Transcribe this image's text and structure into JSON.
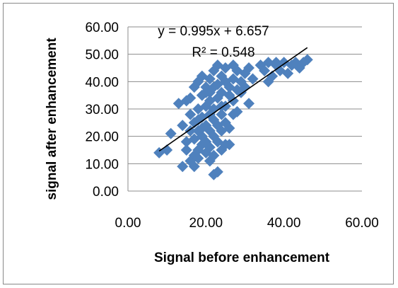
{
  "chart_data": {
    "type": "scatter",
    "title": "",
    "xlabel": "Signal before enhancement",
    "ylabel": "signal after enhancement",
    "xlim": [
      0,
      60
    ],
    "ylim": [
      0,
      60
    ],
    "x_ticks": [
      "0.00",
      "20.00",
      "40.00",
      "60.00"
    ],
    "y_ticks": [
      "0.00",
      "10.00",
      "20.00",
      "30.00",
      "40.00",
      "50.00",
      "60.00"
    ],
    "grid": "horizontal",
    "legend": "none",
    "marker_color": "#4f81bd",
    "marker_shape": "diamond",
    "trendline": {
      "type": "linear",
      "slope": 0.995,
      "intercept": 6.657,
      "x_range": [
        8,
        46
      ],
      "color": "#000000",
      "equation_label": "y = 0.995x + 6.657",
      "r2_label": "R² = 0.548"
    },
    "series": [
      {
        "points": [
          [
            8,
            14
          ],
          [
            10,
            15
          ],
          [
            11,
            21
          ],
          [
            13,
            32
          ],
          [
            14,
            9
          ],
          [
            14,
            24
          ],
          [
            15,
            18
          ],
          [
            15,
            33
          ],
          [
            15,
            15
          ],
          [
            16,
            11
          ],
          [
            16,
            28
          ],
          [
            16,
            22
          ],
          [
            16,
            34
          ],
          [
            17,
            9
          ],
          [
            17,
            19
          ],
          [
            17,
            13
          ],
          [
            17,
            25
          ],
          [
            17,
            38
          ],
          [
            18,
            15
          ],
          [
            18,
            30
          ],
          [
            18,
            22
          ],
          [
            18,
            40
          ],
          [
            18,
            12
          ],
          [
            19,
            27
          ],
          [
            19,
            35
          ],
          [
            19,
            17
          ],
          [
            19,
            42
          ],
          [
            19,
            20
          ],
          [
            20,
            14
          ],
          [
            20,
            24
          ],
          [
            20,
            31
          ],
          [
            20,
            38
          ],
          [
            20,
            18
          ],
          [
            21,
            22
          ],
          [
            21,
            28
          ],
          [
            21,
            36
          ],
          [
            21,
            41
          ],
          [
            21,
            16
          ],
          [
            21,
            33
          ],
          [
            22,
            6
          ],
          [
            22,
            20
          ],
          [
            22,
            26
          ],
          [
            22,
            30
          ],
          [
            22,
            44
          ],
          [
            22,
            13
          ],
          [
            23,
            7
          ],
          [
            23,
            18
          ],
          [
            23,
            24
          ],
          [
            23,
            34
          ],
          [
            23,
            39
          ],
          [
            23,
            46
          ],
          [
            24,
            15
          ],
          [
            24,
            22
          ],
          [
            24,
            28
          ],
          [
            24,
            36
          ],
          [
            24,
            42
          ],
          [
            25,
            17
          ],
          [
            25,
            25
          ],
          [
            25,
            31
          ],
          [
            25,
            40
          ],
          [
            25,
            45
          ],
          [
            26,
            23
          ],
          [
            26,
            35
          ],
          [
            26,
            38
          ],
          [
            26,
            17
          ],
          [
            27,
            28
          ],
          [
            27,
            33
          ],
          [
            27,
            41
          ],
          [
            27,
            46
          ],
          [
            28,
            29
          ],
          [
            28,
            37
          ],
          [
            28,
            44
          ],
          [
            29,
            36
          ],
          [
            29,
            40
          ],
          [
            30,
            38
          ],
          [
            30,
            43
          ],
          [
            31,
            32
          ],
          [
            31,
            45
          ],
          [
            32,
            41
          ],
          [
            34,
            46
          ],
          [
            35,
            44
          ],
          [
            36,
            40
          ],
          [
            36,
            47
          ],
          [
            37,
            42
          ],
          [
            38,
            46
          ],
          [
            38,
            47
          ],
          [
            39,
            44
          ],
          [
            40,
            47
          ],
          [
            41,
            43
          ],
          [
            42,
            46
          ],
          [
            43,
            47
          ],
          [
            44,
            45
          ],
          [
            45,
            47
          ],
          [
            46,
            48
          ],
          [
            20,
            36
          ],
          [
            19,
            23
          ],
          [
            24,
            31
          ],
          [
            22,
            38
          ],
          [
            18,
            26
          ],
          [
            21,
            11
          ]
        ]
      }
    ]
  }
}
